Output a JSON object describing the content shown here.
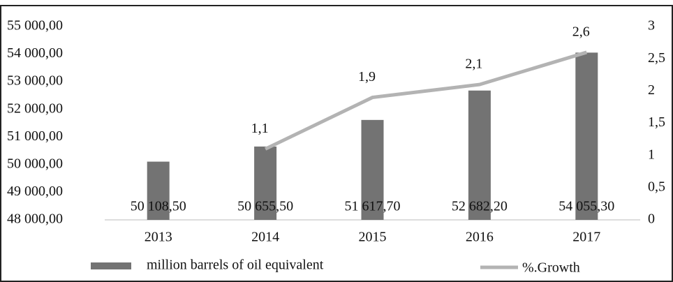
{
  "chart_data": {
    "type": "bar",
    "categories": [
      "2013",
      "2014",
      "2015",
      "2016",
      "2017"
    ],
    "series": [
      {
        "name": "million barrels of oil equivalent",
        "type": "bar",
        "color": "#737373",
        "values": [
          50108.5,
          50655.5,
          51617.7,
          52682.2,
          54055.3
        ],
        "value_labels": [
          "50 108,50",
          "50 655,50",
          "51 617,70",
          "52 682,20",
          "54 055,30"
        ]
      },
      {
        "name": "%.Growth",
        "type": "line",
        "axis": "y2",
        "color": "#b3b3b3",
        "values": [
          null,
          1.1,
          1.9,
          2.1,
          2.6
        ],
        "value_labels": [
          null,
          "1,1",
          "1,9",
          "2,1",
          "2,6"
        ]
      }
    ],
    "ylim": [
      48000,
      55000
    ],
    "yticks": [
      {
        "value": 48000,
        "label": "48 000,00"
      },
      {
        "value": 49000,
        "label": "49 000,00"
      },
      {
        "value": 50000,
        "label": "50 000,00"
      },
      {
        "value": 51000,
        "label": "51 000,00"
      },
      {
        "value": 52000,
        "label": "52 000,00"
      },
      {
        "value": 53000,
        "label": "53 000,00"
      },
      {
        "value": 54000,
        "label": "54 000,00"
      },
      {
        "value": 55000,
        "label": "55 000,00"
      }
    ],
    "y2lim": [
      0,
      3
    ],
    "y2ticks": [
      0,
      {
        "value": 0.5,
        "label": "0,5"
      },
      1,
      {
        "value": 1.5,
        "label": "1,5"
      },
      2,
      {
        "value": 2.5,
        "label": "2,5"
      },
      3
    ],
    "grid": false,
    "legend": "bottom"
  }
}
